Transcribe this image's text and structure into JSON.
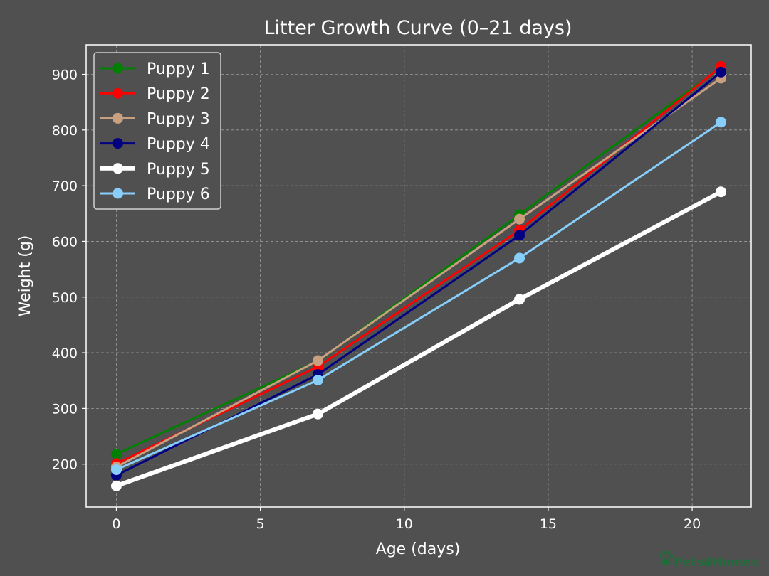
{
  "colors": {
    "background": "#505050",
    "axes": "#ffffff",
    "grid": "#9a9a9a"
  },
  "chart_data": {
    "type": "line",
    "title": "Litter Growth Curve (0–21 days)",
    "xlabel": "Age (days)",
    "ylabel": "Weight (g)",
    "xlim": [
      -1.05,
      22.05
    ],
    "ylim": [
      123,
      953
    ],
    "xticks": [
      0,
      5,
      10,
      15,
      20
    ],
    "yticks": [
      200,
      300,
      400,
      500,
      600,
      700,
      800,
      900
    ],
    "grid": true,
    "legend_position": "top-left",
    "x": [
      0,
      7,
      14,
      21
    ],
    "series": [
      {
        "name": "Puppy 1",
        "color": "#008000",
        "line_weight": "normal",
        "values": [
          218,
          385,
          648,
          912
        ]
      },
      {
        "name": "Puppy 2",
        "color": "#ff0000",
        "line_weight": "normal",
        "values": [
          201,
          375,
          620,
          914
        ]
      },
      {
        "name": "Puppy 3",
        "color": "#c8a080",
        "line_weight": "normal",
        "values": [
          195,
          386,
          640,
          893
        ]
      },
      {
        "name": "Puppy 4",
        "color": "#000080",
        "line_weight": "normal",
        "values": [
          180,
          361,
          611,
          904
        ]
      },
      {
        "name": "Puppy 5",
        "color": "#ffffff",
        "line_weight": "bold",
        "values": [
          161,
          290,
          496,
          689
        ]
      },
      {
        "name": "Puppy 6",
        "color": "#87cefa",
        "line_weight": "normal",
        "values": [
          190,
          351,
          570,
          814
        ]
      }
    ]
  },
  "watermark": {
    "text": "Pets4Homes",
    "icon": "paw-icon"
  }
}
